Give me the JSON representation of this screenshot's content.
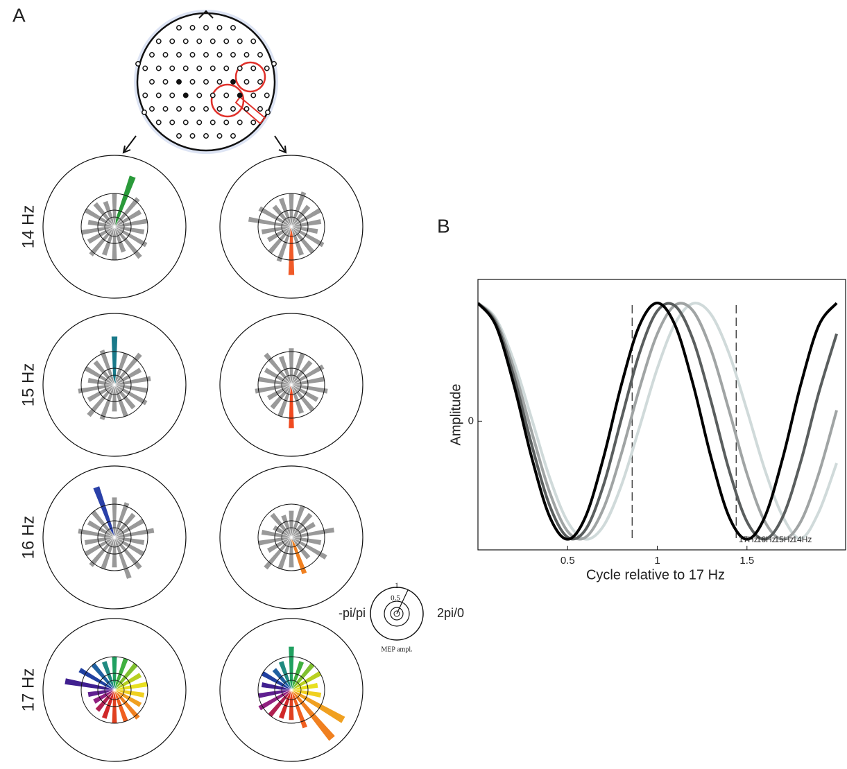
{
  "panel_a": {
    "label": "A",
    "bar_color": "#999999",
    "colors": [
      "#e8e020",
      "#b8d020",
      "#80c030",
      "#40b040",
      "#20a060",
      "#208a80",
      "#2060a0",
      "#2040a0",
      "#402090",
      "#602090",
      "#902080",
      "#b02050",
      "#d02828",
      "#e04020",
      "#f06020",
      "#f08020",
      "#f0a020",
      "#f0d020"
    ],
    "rows": [
      {
        "label": "14 Hz",
        "plots": [
          {
            "values": [
              1.0,
              0.9,
              1.1,
              1.6,
              1.0,
              0.8,
              0.9,
              1.0,
              0.8,
              1.0,
              0.9,
              1.1,
              0.9,
              1.0,
              0.8,
              1.2,
              1.1,
              0.9
            ],
            "highlight": 3,
            "highlight_color": "#2a9a3a"
          },
          {
            "values": [
              0.9,
              1.0,
              0.8,
              1.1,
              1.0,
              0.9,
              0.8,
              1.1,
              1.3,
              0.9,
              0.8,
              1.0,
              1.1,
              1.45,
              0.9,
              1.0,
              1.1,
              0.8
            ],
            "highlight": 13,
            "highlight_color": "#f05a28"
          }
        ]
      },
      {
        "label": "15 Hz",
        "plots": [
          {
            "values": [
              1.1,
              0.9,
              1.2,
              1.0,
              1.45,
              1.1,
              0.9,
              1.0,
              0.8,
              1.1,
              0.9,
              1.2,
              1.1,
              0.8,
              1.0,
              0.9,
              1.1,
              1.0
            ],
            "highlight": 4,
            "highlight_color": "#1a7a8a"
          },
          {
            "values": [
              1.0,
              1.1,
              0.9,
              1.0,
              1.1,
              0.9,
              1.2,
              0.9,
              1.0,
              1.1,
              0.8,
              0.9,
              1.0,
              1.3,
              0.9,
              1.0,
              0.9,
              1.1
            ],
            "highlight": 13,
            "highlight_color": "#f04a20"
          }
        ]
      },
      {
        "label": "16 Hz",
        "plots": [
          {
            "values": [
              1.2,
              1.0,
              0.9,
              1.1,
              1.2,
              1.6,
              1.0,
              0.9,
              1.1,
              0.9,
              1.0,
              1.1,
              1.0,
              0.9,
              1.3,
              1.2,
              1.0,
              0.9
            ],
            "highlight": 5,
            "highlight_color": "#2a40a8"
          },
          {
            "values": [
              1.3,
              0.8,
              0.9,
              1.0,
              0.8,
              0.7,
              0.9,
              0.6,
              0.9,
              1.0,
              0.8,
              1.2,
              1.0,
              0.9,
              1.15,
              0.8,
              1.2,
              0.9
            ],
            "highlight": 14,
            "highlight_color": "#f08020"
          }
        ]
      },
      {
        "label": "17 Hz",
        "plots": [
          {
            "values": [
              1.0,
              0.9,
              1.0,
              1.0,
              1.0,
              0.9,
              1.0,
              1.2,
              1.5,
              0.8,
              0.7,
              0.8,
              0.9,
              1.0,
              1.0,
              1.1,
              0.9,
              0.9
            ],
            "colored": true
          },
          {
            "values": [
              0.8,
              1.0,
              1.0,
              0.9,
              1.3,
              0.9,
              0.8,
              1.0,
              0.9,
              1.0,
              1.1,
              1.0,
              0.9,
              0.9,
              1.2,
              1.9,
              1.8,
              0.9
            ],
            "colored": true
          }
        ]
      }
    ],
    "key": {
      "ticks": [
        0.5,
        1
      ],
      "left_label": "-pi/pi",
      "right_label": "2pi/0",
      "caption": "MEP ampl."
    }
  },
  "chart_data": {
    "type": "line",
    "label": "B",
    "xlabel": "Cycle relative to  17 Hz",
    "ylabel": "Amplitude",
    "x": [
      0,
      0.1,
      0.2,
      0.3,
      0.4,
      0.5,
      0.6,
      0.7,
      0.8,
      0.9,
      1.0,
      1.1,
      1.2,
      1.3,
      1.4,
      1.5,
      1.6,
      1.7,
      1.8,
      1.9,
      2.0
    ],
    "series": [
      {
        "name": "14Hz",
        "color": "#d0dada",
        "values": [
          1,
          0.869,
          0.51,
          0.018,
          -0.479,
          -0.851,
          -0.999,
          -0.887,
          -0.542,
          -0.055,
          0.446,
          0.83,
          0.997,
          0.903,
          0.573,
          0.092,
          -0.413,
          -0.809,
          -0.994,
          -0.771,
          -0.356
        ]
      },
      {
        "name": "15Hz",
        "color": "#a0a4a4",
        "values": [
          1,
          0.85,
          0.446,
          -0.092,
          -0.602,
          -0.933,
          -0.983,
          -0.739,
          -0.274,
          0.274,
          0.739,
          0.983,
          0.932,
          0.602,
          0.092,
          -0.446,
          -0.851,
          -1,
          -0.85,
          -0.446,
          0.092
        ]
      },
      {
        "name": "16Hz",
        "color": "#5a5e5e",
        "values": [
          1,
          0.83,
          0.379,
          -0.202,
          -0.715,
          -0.983,
          -0.918,
          -0.542,
          0.02,
          0.573,
          0.933,
          0.975,
          0.687,
          0.166,
          -0.413,
          -0.851,
          -0.999,
          -0.809,
          -0.343,
          0.238,
          0.739
        ]
      },
      {
        "name": "17Hz",
        "color": "#000000",
        "values": [
          1,
          0.809,
          0.309,
          -0.309,
          -0.809,
          -1,
          -0.809,
          -0.309,
          0.309,
          0.809,
          1,
          0.809,
          0.309,
          -0.309,
          -0.809,
          -1,
          -0.809,
          -0.309,
          0.309,
          0.809,
          1
        ]
      }
    ],
    "vlines": [
      0.86,
      1.44
    ],
    "xlim": [
      0,
      2.05
    ],
    "ylim": [
      -1.09,
      1.2
    ],
    "xticks": [
      0.5,
      1,
      1.5
    ],
    "yticks": [
      0
    ]
  }
}
